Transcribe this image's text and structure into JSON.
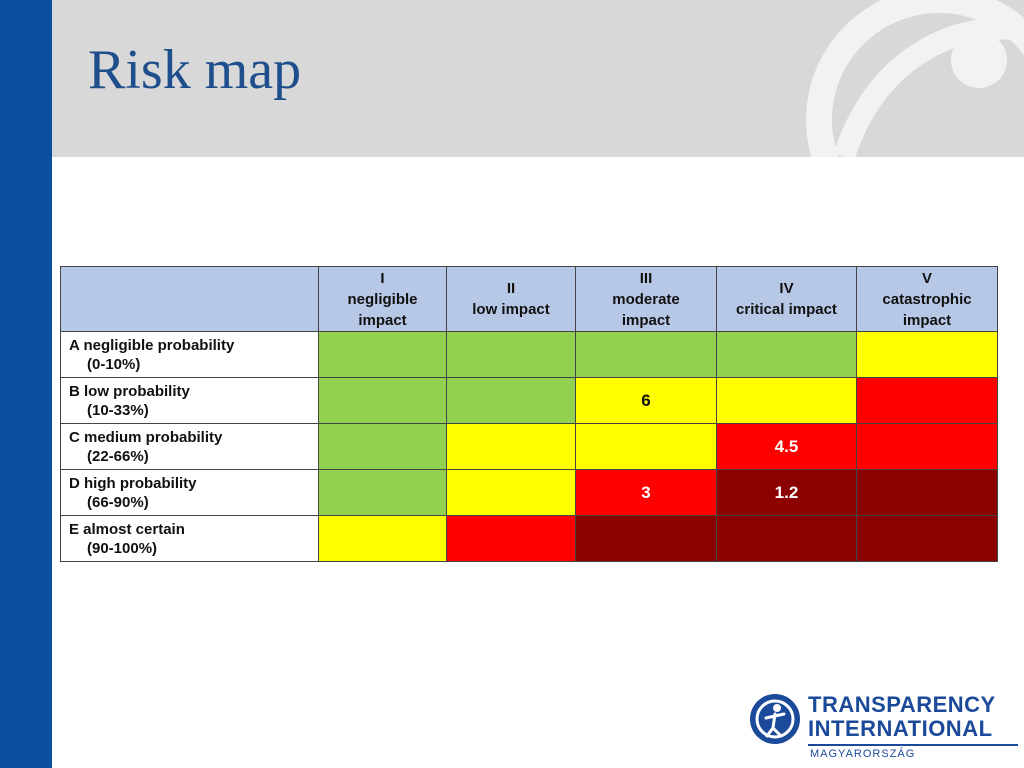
{
  "title": "Risk map",
  "colors": {
    "green": "#92d050",
    "yellow": "#ffff00",
    "red": "#ff0000",
    "darkred": "#8b0000",
    "header_bg": "#b7c7e6",
    "brand_blue": "#0b4fa0"
  },
  "table": {
    "columns": [
      {
        "numeral": "I",
        "label": "negligible impact"
      },
      {
        "numeral": "II",
        "label": "low impact"
      },
      {
        "numeral": "III",
        "label": "moderate impact"
      },
      {
        "numeral": "IV",
        "label": "critical impact"
      },
      {
        "numeral": "V",
        "label": "catastrophic impact"
      }
    ],
    "rows": [
      {
        "label": "A negligible probability",
        "range": "(0-10%)",
        "cells": [
          {
            "color": "green",
            "text": ""
          },
          {
            "color": "green",
            "text": ""
          },
          {
            "color": "green",
            "text": ""
          },
          {
            "color": "green",
            "text": ""
          },
          {
            "color": "yellow",
            "text": ""
          }
        ]
      },
      {
        "label": "B low probability",
        "range": "(10-33%)",
        "cells": [
          {
            "color": "green",
            "text": ""
          },
          {
            "color": "green",
            "text": ""
          },
          {
            "color": "yellow",
            "text": "6"
          },
          {
            "color": "yellow",
            "text": ""
          },
          {
            "color": "red",
            "text": ""
          }
        ]
      },
      {
        "label": "C medium probability",
        "range": "(22-66%)",
        "cells": [
          {
            "color": "green",
            "text": ""
          },
          {
            "color": "yellow",
            "text": ""
          },
          {
            "color": "yellow",
            "text": ""
          },
          {
            "color": "red",
            "text": "4.5"
          },
          {
            "color": "red",
            "text": ""
          }
        ]
      },
      {
        "label": "D high probability",
        "range": "(66-90%)",
        "cells": [
          {
            "color": "green",
            "text": ""
          },
          {
            "color": "yellow",
            "text": ""
          },
          {
            "color": "red",
            "text": "3"
          },
          {
            "color": "darkred",
            "text": "1.2"
          },
          {
            "color": "darkred",
            "text": ""
          }
        ]
      },
      {
        "label": "E almost certain",
        "range": "(90-100%)",
        "cells": [
          {
            "color": "yellow",
            "text": ""
          },
          {
            "color": "red",
            "text": ""
          },
          {
            "color": "darkred",
            "text": ""
          },
          {
            "color": "darkred",
            "text": ""
          },
          {
            "color": "darkred",
            "text": ""
          }
        ]
      }
    ]
  },
  "logo": {
    "line1": "TRANSPARENCY",
    "line2": "INTERNATIONAL",
    "sub": "MAGYARORSZÁG",
    "icon": "globe-person-icon"
  }
}
